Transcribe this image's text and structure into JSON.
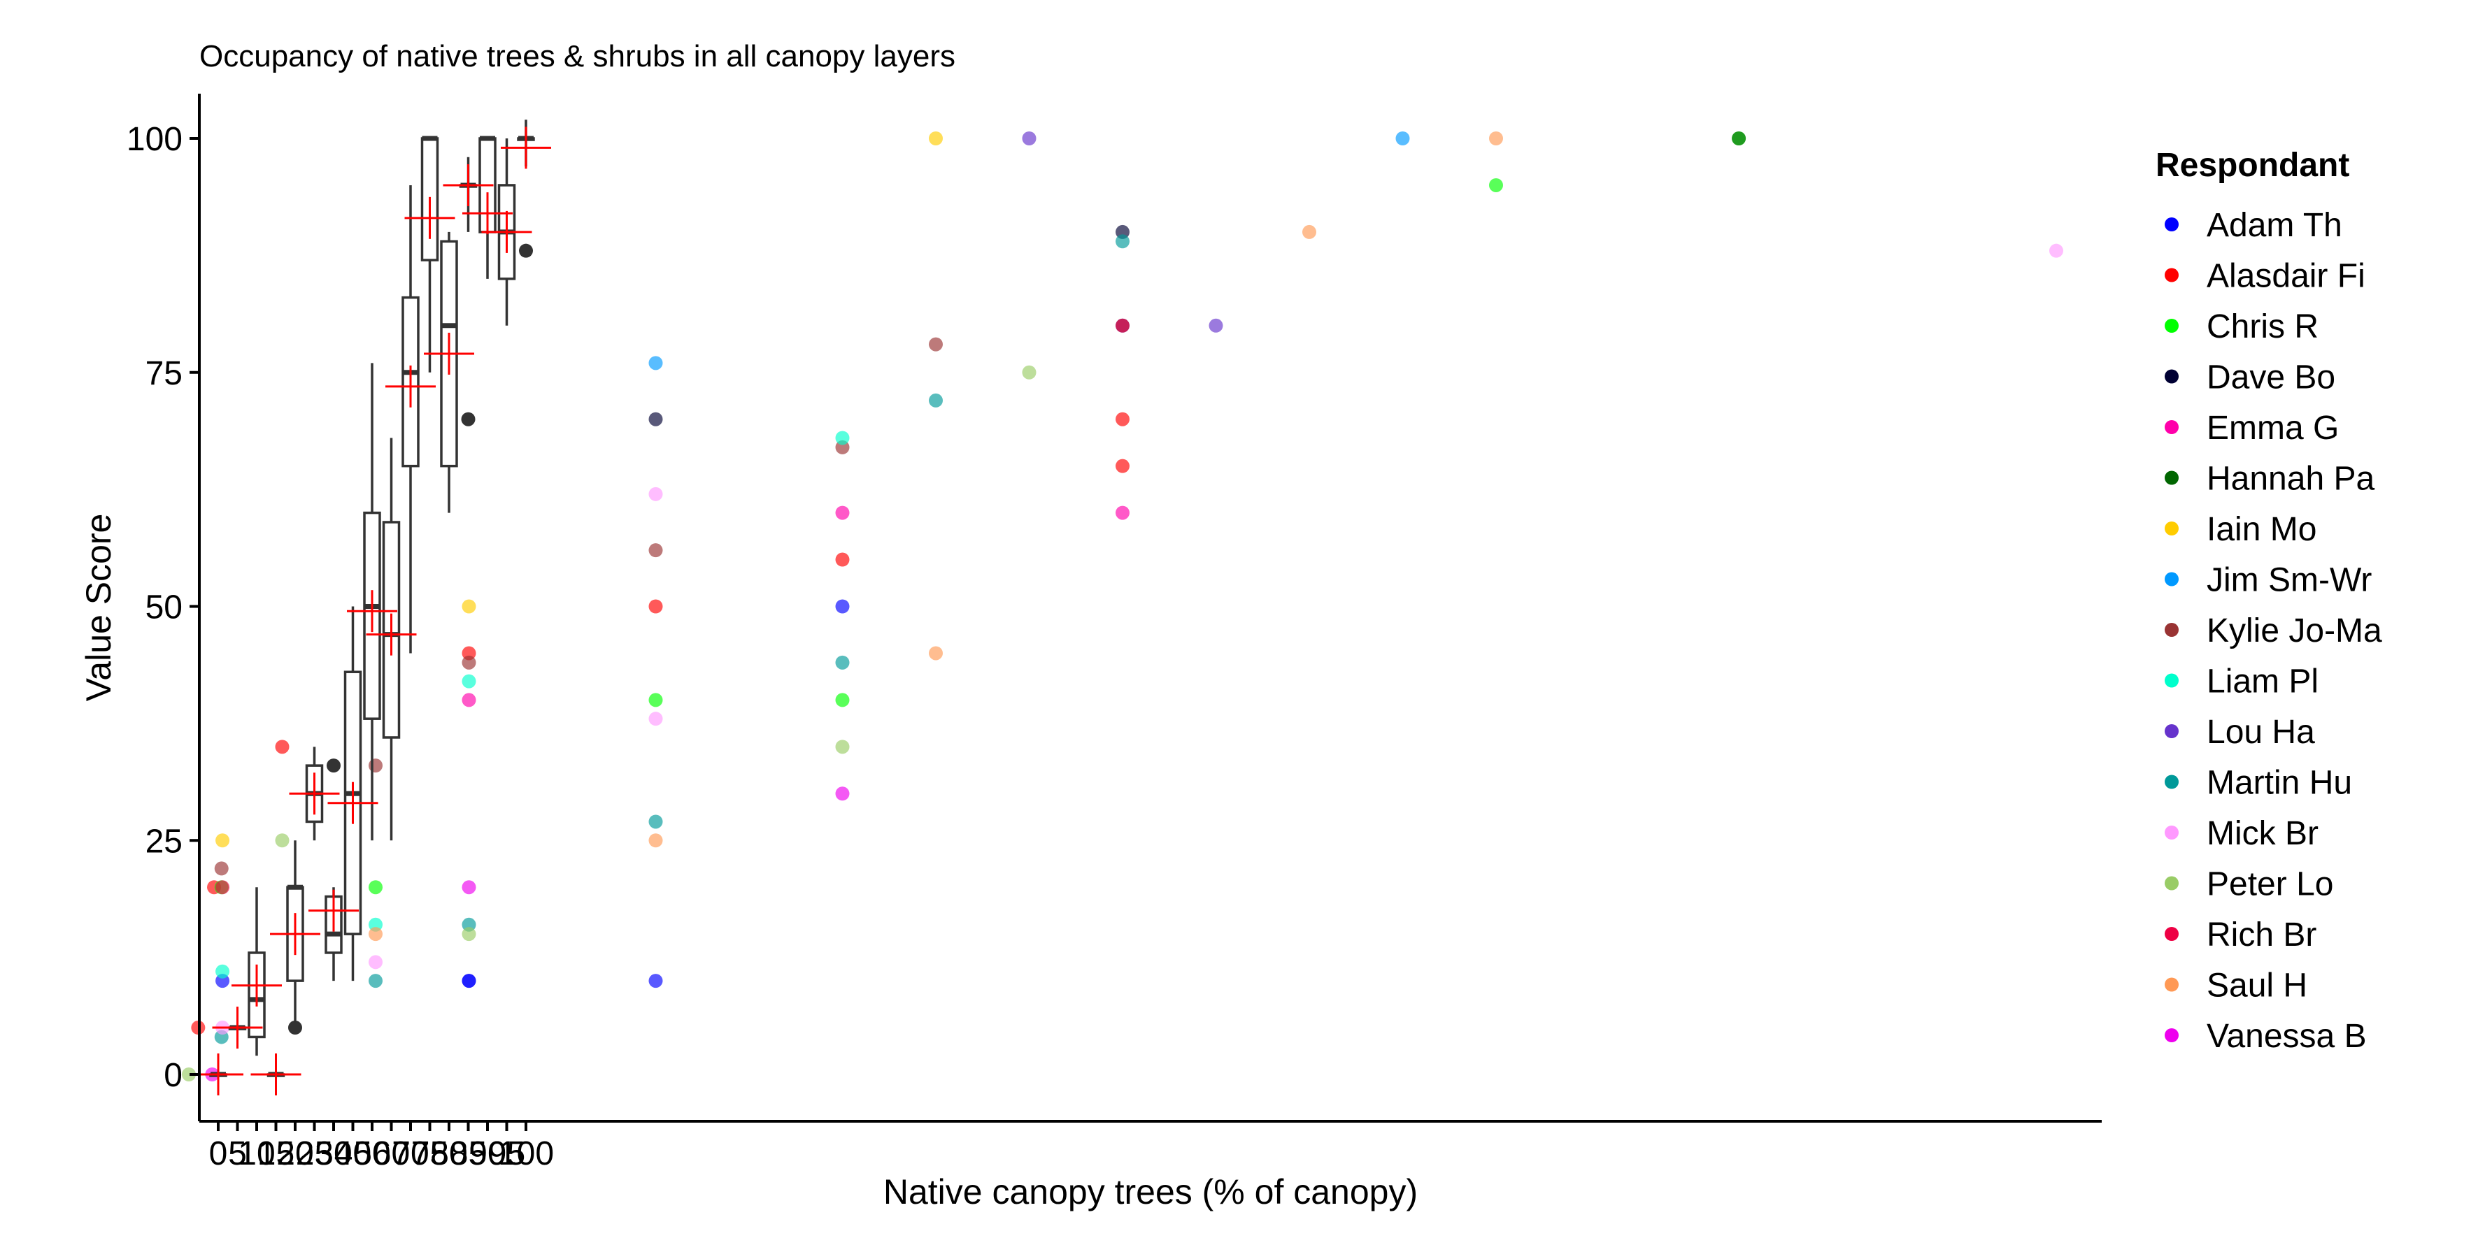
{
  "chart_data": {
    "type": "scatter",
    "title": "Occupancy of native trees & shrubs in all canopy layers",
    "xlabel": "Native canopy trees (% of canopy)",
    "ylabel": "Value Score",
    "ylim": [
      -5,
      105
    ],
    "y_ticks": [
      0,
      25,
      50,
      75,
      100
    ],
    "x_tick_labels": [
      "0",
      "5",
      "10",
      "15",
      "20",
      "25",
      "30",
      "40",
      "50",
      "60",
      "70",
      "75",
      "80",
      "85",
      "90",
      "95",
      "100"
    ],
    "legend_title": "Respondant",
    "legend_position": "right",
    "grid": false,
    "boxplots": [
      {
        "x": "0",
        "q1": 0,
        "median": 0,
        "q3": 0,
        "whisker_low": 0,
        "whisker_high": 0,
        "mean": 0
      },
      {
        "x": "5",
        "q1": 5,
        "median": 5,
        "q3": 5,
        "whisker_low": 5,
        "whisker_high": 5,
        "mean": 5
      },
      {
        "x": "10",
        "q1": 4,
        "median": 8,
        "q3": 13,
        "whisker_low": 2,
        "whisker_high": 20,
        "mean": 9.5
      },
      {
        "x": "15",
        "q1": 0,
        "median": 0,
        "q3": 0,
        "whisker_low": 0,
        "whisker_high": 0,
        "mean": 0
      },
      {
        "x": "20",
        "q1": 10,
        "median": 20,
        "q3": 20,
        "whisker_low": 5,
        "whisker_high": 25,
        "mean": 15
      },
      {
        "x": "25",
        "q1": 27,
        "median": 30,
        "q3": 33,
        "whisker_low": 25,
        "whisker_high": 35,
        "mean": 30
      },
      {
        "x": "30",
        "q1": 13,
        "median": 15,
        "q3": 19,
        "whisker_low": 10,
        "whisker_high": 20,
        "mean": 17.5
      },
      {
        "x": "40",
        "q1": 15,
        "median": 30,
        "q3": 43,
        "whisker_low": 10,
        "whisker_high": 50,
        "mean": 29
      },
      {
        "x": "50",
        "q1": 38,
        "median": 50,
        "q3": 60,
        "whisker_low": 25,
        "whisker_high": 76,
        "mean": 49.5
      },
      {
        "x": "60",
        "q1": 36,
        "median": 47,
        "q3": 59,
        "whisker_low": 25,
        "whisker_high": 68,
        "mean": 47
      },
      {
        "x": "70",
        "q1": 65,
        "median": 75,
        "q3": 83,
        "whisker_low": 45,
        "whisker_high": 95,
        "mean": 73.5
      },
      {
        "x": "75",
        "q1": 87,
        "median": 100,
        "q3": 100,
        "whisker_low": 75,
        "whisker_high": 100,
        "mean": 91.5
      },
      {
        "x": "80",
        "q1": 65,
        "median": 80,
        "q3": 89,
        "whisker_low": 60,
        "whisker_high": 90,
        "mean": 77
      },
      {
        "x": "85",
        "q1": 95,
        "median": 95,
        "q3": 95,
        "whisker_low": 90,
        "whisker_high": 98,
        "mean": 95
      },
      {
        "x": "90",
        "q1": 90,
        "median": 100,
        "q3": 100,
        "whisker_low": 85,
        "whisker_high": 100,
        "mean": 92
      },
      {
        "x": "95",
        "q1": 85,
        "median": 90,
        "q3": 95,
        "whisker_low": 80,
        "whisker_high": 100,
        "mean": 90
      },
      {
        "x": "100",
        "q1": 100,
        "median": 100,
        "q3": 100,
        "whisker_low": 97,
        "whisker_high": 102,
        "mean": 99
      }
    ],
    "outliers": [
      {
        "x": "20",
        "y": 5
      },
      {
        "x": "30",
        "y": 33
      },
      {
        "x": "85",
        "y": 70
      },
      {
        "x": "100",
        "y": 88
      }
    ],
    "series": [
      {
        "name": "Adam Th",
        "color": "#0000ff",
        "points": [
          [
            50,
            10
          ],
          [
            30,
            10
          ],
          [
            100,
            80
          ],
          [
            3.6,
            10
          ],
          [
            70,
            50
          ],
          [
            30,
            10
          ]
        ]
      },
      {
        "name": "Alasdair Fi",
        "color": "#ff0000",
        "points": [
          [
            10,
            35
          ],
          [
            30,
            45
          ],
          [
            50,
            50
          ],
          [
            70,
            55
          ],
          [
            100,
            65
          ],
          [
            100,
            70
          ],
          [
            100,
            80
          ],
          [
            2.7,
            20
          ],
          [
            1.0,
            5
          ]
        ]
      },
      {
        "name": "Chris R",
        "color": "#00ff00",
        "points": [
          [
            3.5,
            20
          ],
          [
            20,
            20
          ],
          [
            50,
            40
          ],
          [
            70,
            40
          ],
          [
            140,
            95
          ],
          [
            166,
            100
          ]
        ]
      },
      {
        "name": "Dave Bo",
        "color": "#000033",
        "points": [
          [
            50,
            70
          ],
          [
            100,
            90
          ]
        ]
      },
      {
        "name": "Emma G",
        "color": "#ff00aa",
        "points": [
          [
            30,
            40
          ],
          [
            70,
            60
          ],
          [
            100,
            60
          ]
        ]
      },
      {
        "name": "Hannah Pa",
        "color": "#006600",
        "points": [
          [
            166,
            100
          ]
        ]
      },
      {
        "name": "Iain Mo",
        "color": "#ffcc00",
        "points": [
          [
            3.6,
            25
          ],
          [
            30,
            50
          ],
          [
            80,
            100
          ]
        ]
      },
      {
        "name": "Jim Sm-Wr",
        "color": "#0099ff",
        "points": [
          [
            50,
            76
          ],
          [
            130,
            100
          ]
        ]
      },
      {
        "name": "Kylie Jo-Ma",
        "color": "#993333",
        "points": [
          [
            3.5,
            22
          ],
          [
            20,
            33
          ],
          [
            30,
            44
          ],
          [
            50,
            56
          ],
          [
            70,
            67
          ],
          [
            80,
            78
          ]
        ]
      },
      {
        "name": "Liam Pl",
        "color": "#00ffcc",
        "points": [
          [
            3.6,
            11
          ],
          [
            20,
            16
          ],
          [
            30,
            42
          ],
          [
            70,
            68
          ]
        ]
      },
      {
        "name": "Lou Ha",
        "color": "#6633cc",
        "points": [
          [
            90,
            100
          ],
          [
            110,
            80
          ]
        ]
      },
      {
        "name": "Martin Hu",
        "color": "#009999",
        "points": [
          [
            3.5,
            4
          ],
          [
            20,
            10
          ],
          [
            30,
            16
          ],
          [
            50,
            27
          ],
          [
            70,
            44
          ],
          [
            80,
            72
          ],
          [
            100,
            89
          ]
        ]
      },
      {
        "name": "Mick Br",
        "color": "#ff99ff",
        "points": [
          [
            3.6,
            5
          ],
          [
            20,
            12
          ],
          [
            50,
            38
          ],
          [
            50,
            62
          ],
          [
            200,
            88
          ]
        ]
      },
      {
        "name": "Peter Lo",
        "color": "#99cc66",
        "points": [
          [
            0,
            0
          ],
          [
            10,
            25
          ],
          [
            30,
            15
          ],
          [
            70,
            35
          ],
          [
            90,
            75
          ]
        ]
      },
      {
        "name": "Rich Br",
        "color": "#ee0044",
        "points": [
          [
            3.6,
            20
          ]
        ]
      },
      {
        "name": "Saul H",
        "color": "#ff9955",
        "points": [
          [
            20,
            15
          ],
          [
            50,
            25
          ],
          [
            80,
            45
          ],
          [
            120,
            90
          ],
          [
            140,
            100
          ]
        ]
      },
      {
        "name": "Vanessa B",
        "color": "#ee00ee",
        "points": [
          [
            2.5,
            0
          ],
          [
            30,
            20
          ],
          [
            70,
            30
          ]
        ]
      }
    ]
  }
}
